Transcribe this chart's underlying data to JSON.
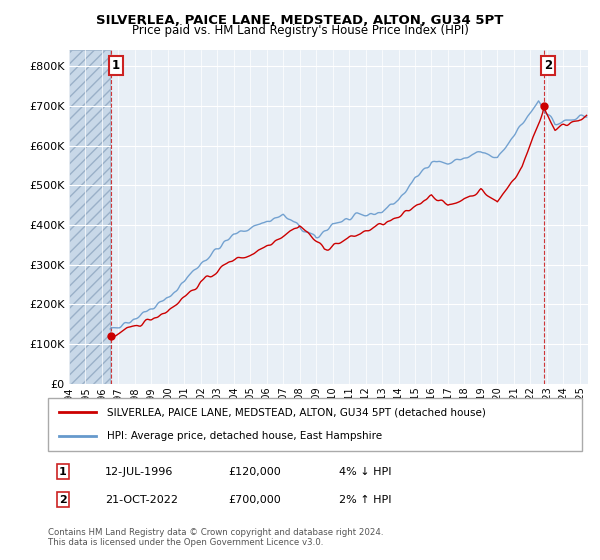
{
  "title_line1": "SILVERLEA, PAICE LANE, MEDSTEAD, ALTON, GU34 5PT",
  "title_line2": "Price paid vs. HM Land Registry's House Price Index (HPI)",
  "ylim": [
    0,
    840000
  ],
  "xlim_start": 1994.0,
  "xlim_end": 2025.5,
  "ytick_labels": [
    "£0",
    "£100K",
    "£200K",
    "£300K",
    "£400K",
    "£500K",
    "£600K",
    "£700K",
    "£800K"
  ],
  "ytick_values": [
    0,
    100000,
    200000,
    300000,
    400000,
    500000,
    600000,
    700000,
    800000
  ],
  "price_paid_color": "#cc0000",
  "hpi_line_color": "#6699cc",
  "annotation_box_color": "#cc2222",
  "point1_x": 1996.54,
  "point1_y": 120000,
  "point2_x": 2022.8,
  "point2_y": 700000,
  "vline1_x": 1996.54,
  "vline2_x": 2022.8,
  "legend_label1": "SILVERLEA, PAICE LANE, MEDSTEAD, ALTON, GU34 5PT (detached house)",
  "legend_label2": "HPI: Average price, detached house, East Hampshire",
  "annotation1_date": "12-JUL-1996",
  "annotation1_price": "£120,000",
  "annotation1_hpi": "4% ↓ HPI",
  "annotation2_date": "21-OCT-2022",
  "annotation2_price": "£700,000",
  "annotation2_hpi": "2% ↑ HPI",
  "footer": "Contains HM Land Registry data © Crown copyright and database right 2024.\nThis data is licensed under the Open Government Licence v3.0.",
  "hatch_region_end": 1996.5,
  "background_color": "#ffffff",
  "grid_color": "#c8d8e8"
}
